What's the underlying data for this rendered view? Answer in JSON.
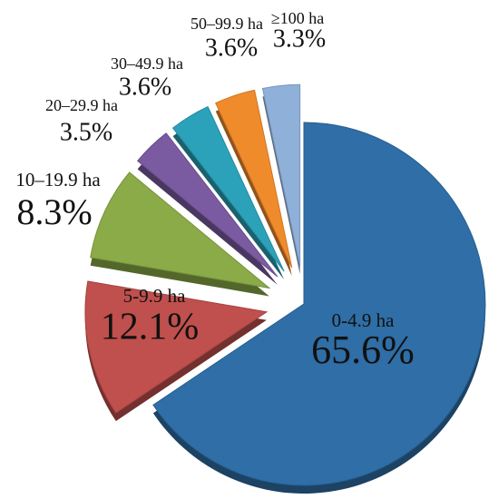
{
  "chart_data": {
    "type": "pie",
    "categories": [
      "0-4.9 ha",
      "5-9.9 ha",
      "10–19.9 ha",
      "20–29.9 ha",
      "30–49.9 ha",
      "50–99.9 ha",
      "≥100 ha"
    ],
    "values": [
      65.6,
      12.1,
      8.3,
      3.5,
      3.6,
      3.6,
      3.3
    ],
    "value_labels": [
      "65.6%",
      "12.1%",
      "8.3%",
      "3.5%",
      "3.6%",
      "3.6%",
      "3.3%"
    ],
    "colors": [
      "#2f6ea6",
      "#c0504d",
      "#8bab48",
      "#7a5ba1",
      "#2ba2b9",
      "#f08b2c",
      "#8fb0d9"
    ]
  }
}
